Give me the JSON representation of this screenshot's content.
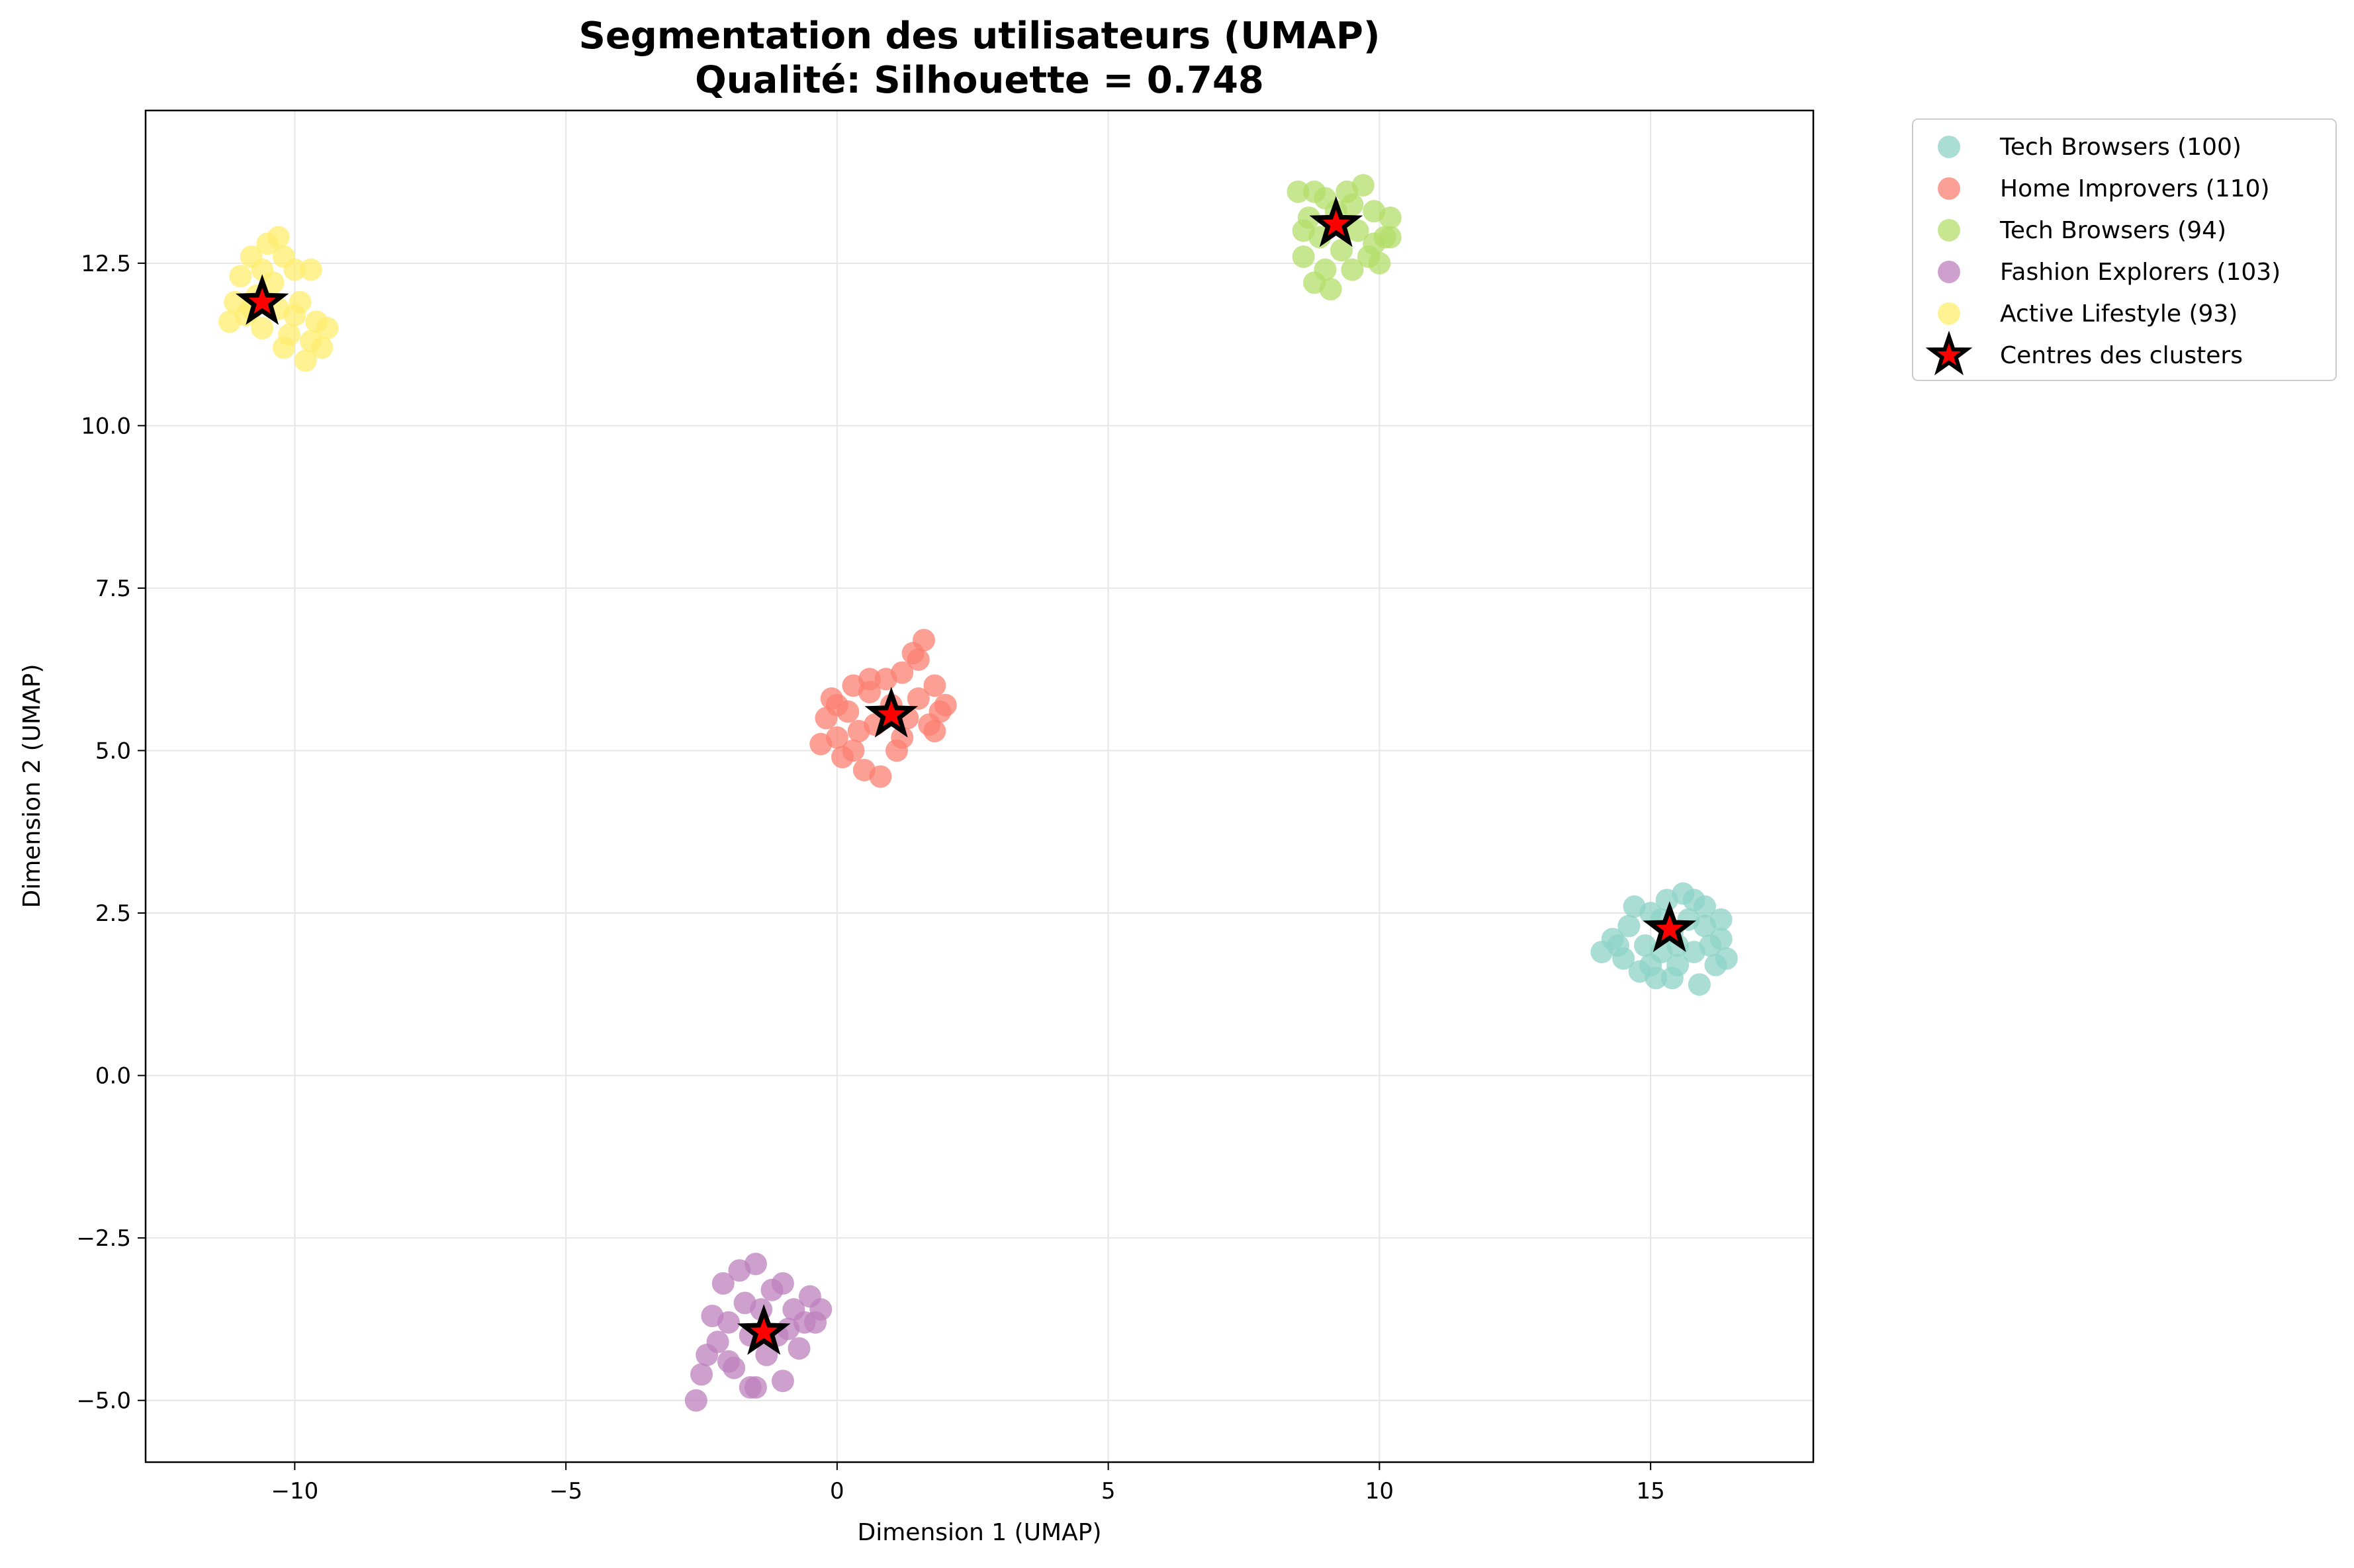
{
  "chart_data": {
    "type": "scatter",
    "title": "Segmentation des utilisateurs (UMAP)",
    "subtitle": "Qualité: Silhouette = 0.748",
    "xlabel": "Dimension 1 (UMAP)",
    "ylabel": "Dimension 2 (UMAP)",
    "xlim": [
      -12.75,
      18.0
    ],
    "ylim": [
      -5.95,
      14.85
    ],
    "x_ticks": [
      -10,
      -5,
      0,
      5,
      10,
      15
    ],
    "x_tick_labels": [
      "−10",
      "−5",
      "0",
      "5",
      "10",
      "15"
    ],
    "y_ticks": [
      -5.0,
      -2.5,
      0.0,
      2.5,
      5.0,
      7.5,
      10.0,
      12.5
    ],
    "y_tick_labels": [
      "−5.0",
      "−2.5",
      "0.0",
      "2.5",
      "5.0",
      "7.5",
      "10.0",
      "12.5"
    ],
    "grid": true,
    "legend_position": "outside-top-right",
    "series": [
      {
        "name": "Tech Browsers (100)",
        "color": "#8dd3c7",
        "center": [
          15.35,
          2.25
        ],
        "points": [
          [
            14.1,
            1.9
          ],
          [
            14.3,
            2.1
          ],
          [
            14.5,
            1.8
          ],
          [
            14.6,
            2.3
          ],
          [
            14.8,
            1.6
          ],
          [
            14.9,
            2.0
          ],
          [
            15.0,
            2.5
          ],
          [
            15.1,
            1.5
          ],
          [
            15.2,
            1.9
          ],
          [
            15.3,
            2.7
          ],
          [
            15.4,
            2.2
          ],
          [
            15.5,
            1.7
          ],
          [
            15.6,
            2.8
          ],
          [
            15.7,
            2.4
          ],
          [
            15.8,
            1.9
          ],
          [
            15.9,
            1.4
          ],
          [
            16.0,
            2.3
          ],
          [
            16.1,
            2.0
          ],
          [
            16.2,
            1.7
          ],
          [
            16.3,
            2.4
          ],
          [
            16.4,
            1.8
          ],
          [
            14.7,
            2.6
          ],
          [
            15.0,
            1.7
          ],
          [
            15.5,
            2.0
          ],
          [
            16.0,
            2.6
          ],
          [
            15.2,
            2.4
          ],
          [
            14.4,
            2.0
          ],
          [
            16.3,
            2.1
          ],
          [
            15.8,
            2.7
          ],
          [
            15.4,
            1.5
          ]
        ]
      },
      {
        "name": "Home Improvers (110)",
        "color": "#fb8072",
        "center": [
          1.0,
          5.55
        ],
        "points": [
          [
            -0.3,
            5.1
          ],
          [
            -0.2,
            5.5
          ],
          [
            -0.1,
            5.8
          ],
          [
            0.0,
            5.2
          ],
          [
            0.1,
            4.9
          ],
          [
            0.2,
            5.6
          ],
          [
            0.3,
            6.0
          ],
          [
            0.4,
            5.3
          ],
          [
            0.5,
            4.7
          ],
          [
            0.6,
            5.9
          ],
          [
            0.7,
            5.4
          ],
          [
            0.8,
            4.6
          ],
          [
            0.9,
            6.1
          ],
          [
            1.0,
            5.7
          ],
          [
            1.1,
            5.0
          ],
          [
            1.2,
            6.2
          ],
          [
            1.3,
            5.5
          ],
          [
            1.4,
            6.5
          ],
          [
            1.5,
            5.8
          ],
          [
            1.6,
            6.7
          ],
          [
            1.7,
            5.4
          ],
          [
            1.8,
            6.0
          ],
          [
            1.9,
            5.6
          ],
          [
            2.0,
            5.7
          ],
          [
            0.3,
            5.0
          ],
          [
            0.6,
            6.1
          ],
          [
            1.2,
            5.2
          ],
          [
            1.5,
            6.4
          ],
          [
            0.0,
            5.7
          ],
          [
            1.8,
            5.3
          ]
        ]
      },
      {
        "name": "Tech Browsers (94)",
        "color": "#b3de69",
        "center": [
          9.2,
          13.1
        ],
        "points": [
          [
            8.5,
            13.6
          ],
          [
            8.6,
            12.6
          ],
          [
            8.7,
            13.2
          ],
          [
            8.8,
            12.2
          ],
          [
            8.9,
            12.9
          ],
          [
            9.0,
            13.5
          ],
          [
            9.1,
            12.1
          ],
          [
            9.2,
            13.3
          ],
          [
            9.3,
            12.7
          ],
          [
            9.4,
            13.6
          ],
          [
            9.5,
            12.4
          ],
          [
            9.6,
            13.0
          ],
          [
            9.7,
            13.7
          ],
          [
            9.8,
            12.6
          ],
          [
            9.9,
            13.3
          ],
          [
            10.0,
            12.5
          ],
          [
            10.1,
            12.9
          ],
          [
            10.2,
            13.2
          ],
          [
            8.6,
            13.0
          ],
          [
            9.0,
            12.4
          ],
          [
            9.5,
            13.4
          ],
          [
            9.9,
            12.8
          ],
          [
            8.8,
            13.6
          ],
          [
            10.2,
            12.9
          ]
        ]
      },
      {
        "name": "Fashion Explorers (103)",
        "color": "#bc80bd",
        "center": [
          -1.35,
          -3.95
        ],
        "points": [
          [
            -2.6,
            -5.0
          ],
          [
            -2.5,
            -4.6
          ],
          [
            -2.4,
            -4.3
          ],
          [
            -2.3,
            -3.7
          ],
          [
            -2.2,
            -4.1
          ],
          [
            -2.1,
            -3.2
          ],
          [
            -2.0,
            -3.8
          ],
          [
            -1.9,
            -4.5
          ],
          [
            -1.8,
            -3.0
          ],
          [
            -1.7,
            -3.5
          ],
          [
            -1.6,
            -4.0
          ],
          [
            -1.5,
            -4.8
          ],
          [
            -1.4,
            -3.6
          ],
          [
            -1.3,
            -4.3
          ],
          [
            -1.2,
            -3.3
          ],
          [
            -1.1,
            -4.0
          ],
          [
            -1.0,
            -4.7
          ],
          [
            -0.9,
            -3.9
          ],
          [
            -0.8,
            -3.6
          ],
          [
            -0.7,
            -4.2
          ],
          [
            -0.6,
            -3.8
          ],
          [
            -0.5,
            -3.4
          ],
          [
            -0.4,
            -3.8
          ],
          [
            -0.3,
            -3.6
          ],
          [
            -1.5,
            -2.9
          ],
          [
            -1.0,
            -3.2
          ],
          [
            -2.0,
            -4.4
          ],
          [
            -1.6,
            -4.8
          ]
        ]
      },
      {
        "name": "Active Lifestyle (93)",
        "color": "#ffed6f",
        "center": [
          -10.6,
          11.9
        ],
        "points": [
          [
            -11.2,
            11.6
          ],
          [
            -11.1,
            11.9
          ],
          [
            -11.0,
            12.3
          ],
          [
            -10.9,
            11.7
          ],
          [
            -10.8,
            12.6
          ],
          [
            -10.7,
            12.0
          ],
          [
            -10.6,
            11.5
          ],
          [
            -10.5,
            12.8
          ],
          [
            -10.4,
            12.2
          ],
          [
            -10.3,
            11.8
          ],
          [
            -10.2,
            12.6
          ],
          [
            -10.1,
            11.4
          ],
          [
            -10.0,
            12.4
          ],
          [
            -9.9,
            11.9
          ],
          [
            -9.8,
            11.0
          ],
          [
            -9.7,
            11.3
          ],
          [
            -9.6,
            11.6
          ],
          [
            -9.5,
            11.2
          ],
          [
            -9.4,
            11.5
          ],
          [
            -10.8,
            11.8
          ],
          [
            -10.3,
            12.9
          ],
          [
            -10.0,
            11.7
          ],
          [
            -9.7,
            12.4
          ],
          [
            -10.6,
            12.4
          ],
          [
            -10.2,
            11.2
          ]
        ]
      }
    ],
    "centers_legend_label": "Centres des clusters",
    "center_marker_fill": "#ff0000",
    "center_marker_stroke": "#000000"
  }
}
